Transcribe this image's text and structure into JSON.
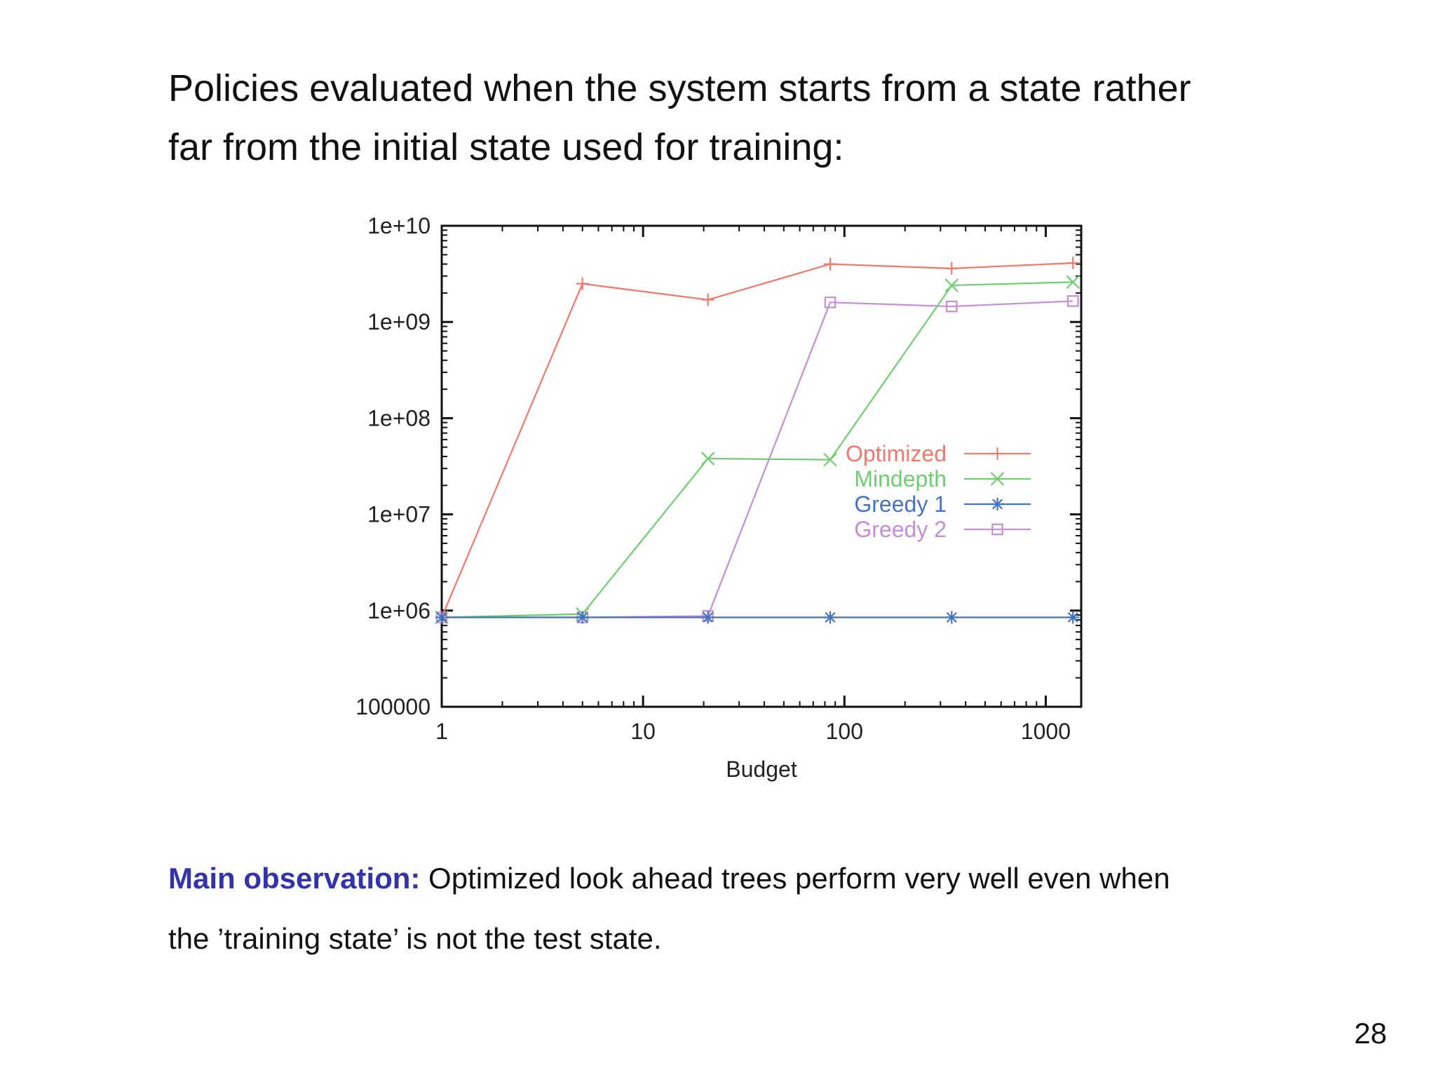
{
  "slide": {
    "title_line1": "Policies evaluated when the system starts from a state rather",
    "title_line2": "far from the initial state used for training:",
    "observation_label": "Main observation:",
    "observation_line1": " Optimized look ahead trees perform very well even when",
    "observation_line2": "the ’training state’ is not the test state.",
    "page_number": "28"
  },
  "chart_data": {
    "type": "line",
    "title": "",
    "xlabel": "Budget",
    "ylabel": "",
    "x_scale": "log",
    "y_scale": "log",
    "xlim": [
      1,
      1500
    ],
    "ylim": [
      100000,
      10000000000
    ],
    "x_ticks": [
      1,
      10,
      100,
      1000
    ],
    "x_tick_labels": [
      "1",
      "10",
      "100",
      "1000"
    ],
    "y_ticks": [
      100000,
      1000000,
      10000000,
      100000000,
      1000000000,
      10000000000
    ],
    "y_tick_labels": [
      "100000",
      "1e+06",
      "1e+07",
      "1e+08",
      "1e+09",
      "1e+10"
    ],
    "grid": false,
    "legend_position": "center-right",
    "x": [
      1,
      5,
      21,
      85,
      341,
      1365
    ],
    "series": [
      {
        "name": "Optimized",
        "color": "#f2786b",
        "marker": "plus",
        "values": [
          850000,
          2500000000,
          1700000000,
          4000000000,
          3600000000,
          4100000000
        ]
      },
      {
        "name": "Mindepth",
        "color": "#6fce6f",
        "marker": "cross",
        "values": [
          850000,
          920000,
          38000000,
          37000000,
          2400000000,
          2600000000
        ]
      },
      {
        "name": "Greedy 1",
        "color": "#4472c4",
        "marker": "star",
        "values": [
          850000,
          850000,
          850000,
          850000,
          850000,
          850000
        ]
      },
      {
        "name": "Greedy 2",
        "color": "#c58ed6",
        "marker": "square",
        "values": [
          850000,
          850000,
          880000,
          1600000000,
          1450000000,
          1650000000
        ]
      }
    ]
  }
}
